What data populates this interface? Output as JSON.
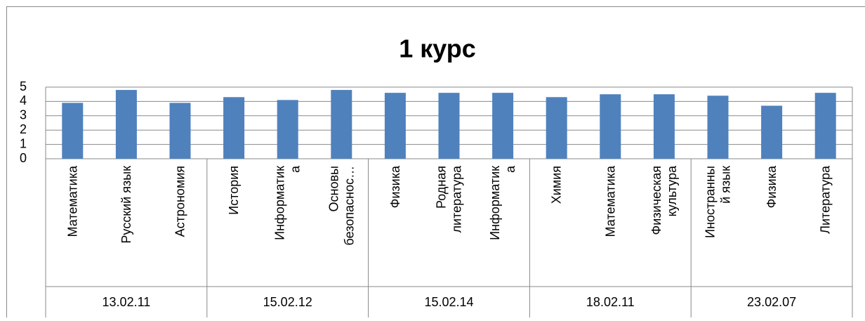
{
  "chart_data": {
    "type": "bar",
    "title": "1 курс",
    "color": "#4f81bd",
    "grid": true,
    "ylim": [
      0,
      5
    ],
    "yticks": [
      0,
      1,
      2,
      3,
      4,
      5
    ],
    "groups": [
      {
        "name": "13.02.11",
        "categories": [
          [
            "Математика"
          ],
          [
            "Русский язык"
          ],
          [
            "Астрономия"
          ]
        ],
        "values": [
          3.9,
          4.8,
          3.9
        ]
      },
      {
        "name": "15.02.12",
        "categories": [
          [
            "История"
          ],
          [
            "Информатик",
            "а"
          ],
          [
            "Основы",
            "безопаснос…"
          ]
        ],
        "values": [
          4.3,
          4.1,
          4.8
        ]
      },
      {
        "name": "15.02.14",
        "categories": [
          [
            "Физика"
          ],
          [
            "Родная",
            "литература"
          ],
          [
            "Информатик",
            "а"
          ]
        ],
        "values": [
          4.6,
          4.6,
          4.6
        ]
      },
      {
        "name": "18.02.11",
        "categories": [
          [
            "Химия"
          ],
          [
            "Математика"
          ],
          [
            "Физическая",
            "культура"
          ]
        ],
        "values": [
          4.3,
          4.5,
          4.5
        ]
      },
      {
        "name": "23.02.07",
        "categories": [
          [
            "Иностранны",
            "й язык"
          ],
          [
            "Физика"
          ],
          [
            "Литература"
          ]
        ],
        "values": [
          4.4,
          3.7,
          4.6
        ]
      }
    ]
  }
}
